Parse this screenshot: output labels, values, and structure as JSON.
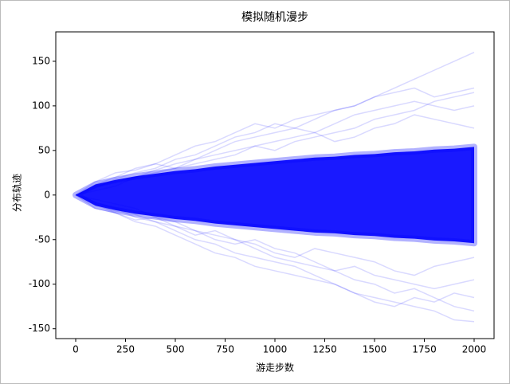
{
  "chart_data": {
    "type": "line",
    "title": "模拟随机漫步",
    "x_label": "游走步数",
    "y_label": "分布轨迹",
    "x": [
      0,
      100,
      200,
      300,
      400,
      500,
      600,
      700,
      800,
      900,
      1000,
      1100,
      1200,
      1300,
      1400,
      1500,
      1600,
      1700,
      1800,
      1900,
      2000
    ],
    "band": {
      "color": "#0000ff",
      "upper": [
        0,
        12,
        17,
        21,
        24,
        27,
        29,
        32,
        34,
        36,
        38,
        40,
        42,
        43,
        45,
        46,
        48,
        49,
        51,
        52,
        54
      ],
      "lower": [
        0,
        -12,
        -17,
        -21,
        -24,
        -27,
        -29,
        -32,
        -34,
        -36,
        -38,
        -40,
        -42,
        -43,
        -45,
        -46,
        -48,
        -49,
        -51,
        -52,
        -54
      ]
    },
    "series": [
      {
        "color": "#0000ff",
        "values": [
          0,
          10,
          15,
          20,
          28,
          35,
          40,
          50,
          60,
          65,
          70,
          75,
          85,
          95,
          100,
          110,
          120,
          130,
          140,
          150,
          160
        ]
      },
      {
        "color": "#0000ff",
        "values": [
          0,
          -8,
          -15,
          -25,
          -30,
          -40,
          -50,
          -55,
          -65,
          -70,
          -75,
          -80,
          -90,
          -100,
          -110,
          -115,
          -120,
          -125,
          -130,
          -140,
          -142
        ]
      },
      {
        "color": "#0000ff",
        "values": [
          0,
          12,
          20,
          30,
          35,
          45,
          55,
          60,
          70,
          80,
          75,
          85,
          90,
          95,
          100,
          110,
          115,
          120,
          110,
          115,
          120
        ]
      },
      {
        "color": "#0000ff",
        "values": [
          0,
          -10,
          -20,
          -30,
          -35,
          -45,
          -55,
          -65,
          -70,
          -80,
          -85,
          -90,
          -95,
          -100,
          -110,
          -120,
          -125,
          -115,
          -120,
          -110,
          -115
        ]
      },
      {
        "color": "#0000ff",
        "values": [
          0,
          8,
          18,
          25,
          30,
          40,
          45,
          55,
          65,
          70,
          80,
          75,
          70,
          80,
          90,
          95,
          100,
          105,
          100,
          95,
          100
        ]
      },
      {
        "color": "#0000ff",
        "values": [
          0,
          -12,
          -18,
          -22,
          -30,
          -35,
          -40,
          -50,
          -55,
          -50,
          -60,
          -65,
          -75,
          -85,
          -80,
          -90,
          -95,
          -100,
          -105,
          -100,
          -95
        ]
      },
      {
        "color": "#0000ff",
        "values": [
          0,
          5,
          10,
          20,
          25,
          30,
          35,
          40,
          45,
          55,
          60,
          65,
          70,
          60,
          65,
          75,
          80,
          90,
          85,
          80,
          75
        ]
      },
      {
        "color": "#0000ff",
        "values": [
          0,
          -5,
          -10,
          -15,
          -25,
          -30,
          -40,
          -45,
          -50,
          -55,
          -65,
          -70,
          -60,
          -65,
          -70,
          -75,
          -85,
          -90,
          -80,
          -75,
          -70
        ]
      },
      {
        "color": "#0000ff",
        "values": [
          0,
          15,
          25,
          28,
          35,
          30,
          40,
          45,
          50,
          55,
          50,
          60,
          65,
          70,
          75,
          85,
          90,
          95,
          105,
          110,
          115
        ]
      },
      {
        "color": "#0000ff",
        "values": [
          0,
          -15,
          -20,
          -28,
          -25,
          -35,
          -45,
          -40,
          -50,
          -60,
          -70,
          -75,
          -80,
          -85,
          -95,
          -100,
          -110,
          -105,
          -115,
          -125,
          -130
        ]
      }
    ],
    "xlim": [
      -100,
      2100
    ],
    "ylim": [
      -161,
      183
    ],
    "xticks": [
      0,
      250,
      500,
      750,
      1000,
      1250,
      1500,
      1750,
      2000
    ],
    "yticks": [
      -150,
      -100,
      -50,
      0,
      50,
      100,
      150
    ]
  }
}
